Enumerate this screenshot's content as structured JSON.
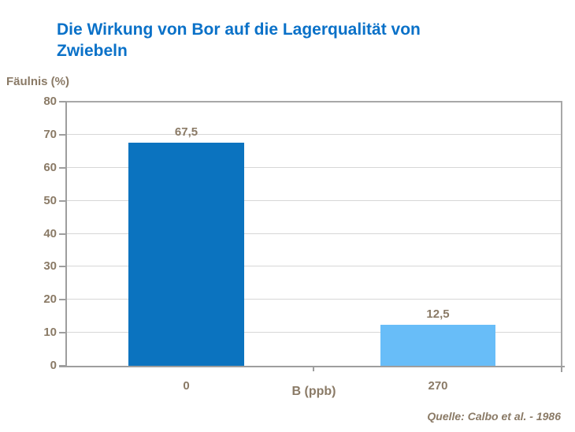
{
  "chart_data": {
    "type": "bar",
    "title": "Die Wirkung von Bor auf die Lagerqualität von Zwiebeln",
    "title_lines": [
      "Die Wirkung von Bor auf die Lagerqualität von",
      "Zwiebeln"
    ],
    "ylabel": "Fäulnis (%)",
    "xlabel": "B (ppb)",
    "categories": [
      "0",
      "270"
    ],
    "values": [
      67.5,
      12.5
    ],
    "value_labels": [
      "67,5",
      "12,5"
    ],
    "ylim": [
      0,
      80
    ],
    "y_ticks": [
      0,
      10,
      20,
      30,
      40,
      50,
      60,
      70,
      80
    ],
    "grid": "horizontal",
    "legend": "none",
    "source": "Quelle: Calbo et al. - 1986",
    "colors": {
      "title": "#0a71c8",
      "bar_0ppb": "#0b73bf",
      "bar_270ppb": "#68bdf8",
      "axis_text": "#8a7a66",
      "gridline": "#d7d7d7",
      "axis_line": "#9e9e9e",
      "plot_border": "#a8a8a8"
    }
  }
}
